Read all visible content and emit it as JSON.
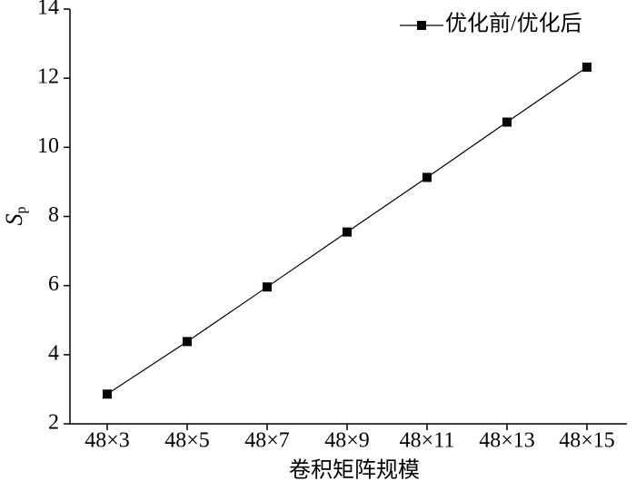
{
  "chart_data": {
    "type": "line",
    "x_label": "卷积矩阵规模",
    "y_label": {
      "main": "S",
      "sub": "p"
    },
    "categories": [
      "48×3",
      "48×5",
      "48×7",
      "48×9",
      "48×11",
      "48×13",
      "48×15"
    ],
    "series": [
      {
        "name": "优化前/优化后",
        "color": "#000000",
        "values": [
          2.86,
          4.38,
          5.96,
          7.55,
          9.13,
          10.73,
          12.32
        ]
      }
    ],
    "ylim": [
      2,
      14
    ],
    "yticks": [
      2,
      4,
      6,
      8,
      10,
      12,
      14
    ],
    "grid": false,
    "legend_position": "upper-right",
    "marker": "square"
  }
}
